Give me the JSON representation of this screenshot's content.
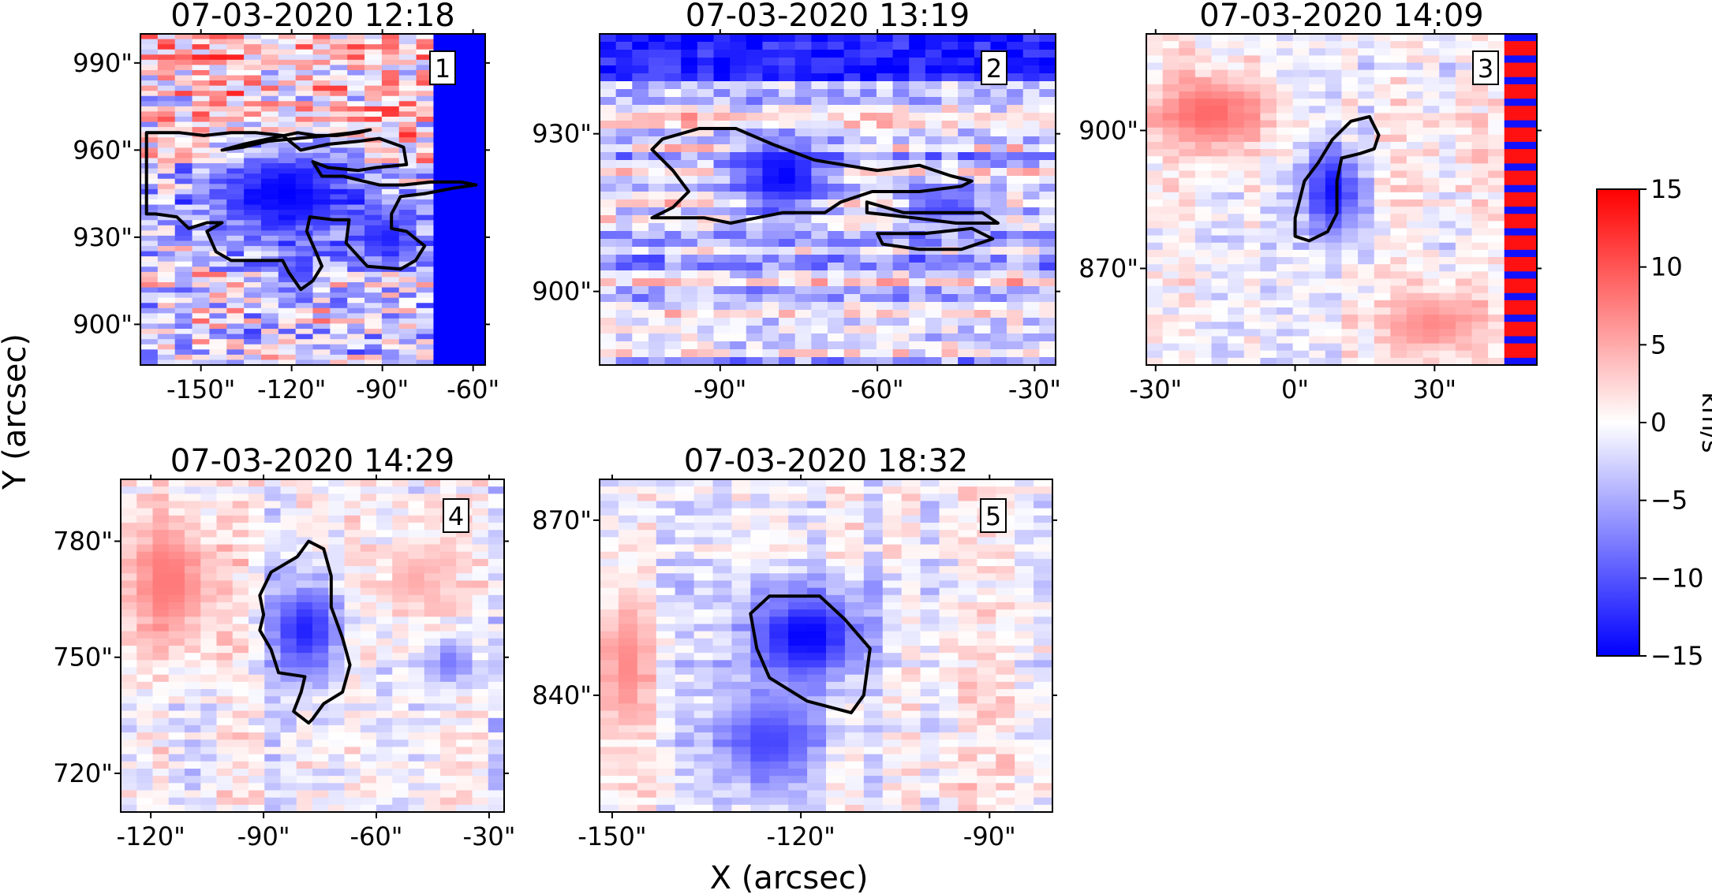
{
  "figure": {
    "xlabel": "X (arcsec)",
    "ylabel": "Y (arcsec)"
  },
  "colorbar": {
    "label": "km/s",
    "range": [
      -15,
      15
    ],
    "ticks": [
      15,
      10,
      5,
      0,
      -5,
      -10,
      -15
    ],
    "tick_labels": [
      "15",
      "10",
      "5",
      "0",
      "−5",
      "−10",
      "−15"
    ],
    "colors": {
      "low": "#0000ff",
      "mid": "#ffffff",
      "high": "#ff0000"
    }
  },
  "chart_data": [
    {
      "type": "heatmap",
      "panel": "1",
      "title": "07-03-2020 12:18",
      "xlim": [
        -170,
        -56
      ],
      "ylim": [
        886,
        1000
      ],
      "xticks": [
        -150,
        -120,
        -90,
        -60
      ],
      "xtick_labels": [
        "-150\"",
        "-120\"",
        "-90\"",
        "-60\""
      ],
      "yticks": [
        900,
        930,
        960,
        990
      ],
      "ytick_labels": [
        "900\"",
        "930\"",
        "960\"",
        "990\""
      ],
      "pattern": "noisy",
      "blobs": [
        {
          "x": -122,
          "y": 945,
          "rx": 33,
          "ry": 20,
          "v": -15
        },
        {
          "x": -88,
          "y": 930,
          "rx": 14,
          "ry": 12,
          "v": -13
        },
        {
          "x": -118,
          "y": 918,
          "rx": 8,
          "ry": 8,
          "v": -12
        }
      ],
      "stripes": [
        {
          "x": [
            -66,
            -62
          ],
          "v": -15
        }
      ],
      "contours": [
        [
          [
            -168,
            966
          ],
          [
            -157,
            966
          ],
          [
            -149,
            965
          ],
          [
            -140,
            966
          ],
          [
            -132,
            966
          ],
          [
            -123,
            965
          ],
          [
            -117,
            960
          ],
          [
            -108,
            962
          ],
          [
            -98,
            963
          ],
          [
            -91,
            964
          ],
          [
            -83,
            961
          ],
          [
            -82,
            955
          ],
          [
            -92,
            954
          ],
          [
            -98,
            953
          ],
          [
            -108,
            954
          ],
          [
            -113,
            956
          ],
          [
            -110,
            951
          ],
          [
            -103,
            951
          ],
          [
            -95,
            949
          ],
          [
            -91,
            948
          ],
          [
            -83,
            948
          ],
          [
            -74,
            949
          ],
          [
            -64,
            949
          ],
          [
            -59,
            948
          ],
          [
            -66,
            947
          ],
          [
            -76,
            945
          ],
          [
            -84,
            944
          ],
          [
            -87,
            938
          ],
          [
            -87,
            933
          ],
          [
            -82,
            932
          ],
          [
            -76,
            927
          ],
          [
            -79,
            922
          ],
          [
            -84,
            919
          ],
          [
            -95,
            920
          ],
          [
            -102,
            928
          ],
          [
            -101,
            936
          ],
          [
            -106,
            936
          ],
          [
            -114,
            937
          ],
          [
            -115,
            932
          ],
          [
            -112,
            925
          ],
          [
            -110,
            920
          ],
          [
            -113,
            915
          ],
          [
            -117,
            912
          ],
          [
            -121,
            918
          ],
          [
            -123,
            922
          ],
          [
            -128,
            922
          ],
          [
            -133,
            922
          ],
          [
            -140,
            922
          ],
          [
            -145,
            925
          ],
          [
            -148,
            932
          ],
          [
            -143,
            935
          ],
          [
            -148,
            935
          ],
          [
            -154,
            933
          ],
          [
            -158,
            937
          ],
          [
            -165,
            938
          ],
          [
            -168,
            938
          ]
        ],
        [
          [
            -143,
            960
          ],
          [
            -136,
            962
          ],
          [
            -127,
            964
          ],
          [
            -118,
            966
          ],
          [
            -112,
            965
          ],
          [
            -105,
            965
          ],
          [
            -98,
            966
          ],
          [
            -94,
            967
          ],
          [
            -100,
            966
          ],
          [
            -108,
            965
          ],
          [
            -118,
            964
          ],
          [
            -128,
            963
          ],
          [
            -136,
            961
          ]
        ]
      ]
    },
    {
      "type": "heatmap",
      "panel": "2",
      "title": "07-03-2020 13:19",
      "xlim": [
        -113,
        -26
      ],
      "ylim": [
        886,
        949
      ],
      "xticks": [
        -90,
        -60,
        -30
      ],
      "xtick_labels": [
        "-90\"",
        "-60\"",
        "-30\""
      ],
      "yticks": [
        900,
        930
      ],
      "ytick_labels": [
        "900\"",
        "930\""
      ],
      "pattern": "banded",
      "blobs": [
        {
          "x": -78,
          "y": 922,
          "rx": 10,
          "ry": 8,
          "v": -15
        },
        {
          "x": -47,
          "y": 916,
          "rx": 10,
          "ry": 4,
          "v": -11
        }
      ],
      "topband": {
        "y": [
          940,
          949
        ],
        "v": -13
      },
      "contours": [
        [
          [
            -101,
            929
          ],
          [
            -94,
            931
          ],
          [
            -87,
            931
          ],
          [
            -80,
            928
          ],
          [
            -72,
            925
          ],
          [
            -60,
            923
          ],
          [
            -52,
            924
          ],
          [
            -46,
            922
          ],
          [
            -42,
            921
          ],
          [
            -44,
            920
          ],
          [
            -52,
            919
          ],
          [
            -61,
            919
          ],
          [
            -67,
            917
          ],
          [
            -70,
            915
          ],
          [
            -78,
            915
          ],
          [
            -83,
            914
          ],
          [
            -88,
            913
          ],
          [
            -93,
            914
          ],
          [
            -99,
            914
          ],
          [
            -103,
            914
          ],
          [
            -99,
            916
          ],
          [
            -96,
            919
          ],
          [
            -99,
            923
          ],
          [
            -103,
            927
          ]
        ],
        [
          [
            -62,
            917
          ],
          [
            -55,
            915
          ],
          [
            -48,
            915
          ],
          [
            -40,
            915
          ],
          [
            -37,
            913
          ],
          [
            -45,
            913
          ],
          [
            -53,
            914
          ],
          [
            -62,
            915
          ]
        ],
        [
          [
            -51,
            911
          ],
          [
            -42,
            912
          ],
          [
            -38,
            910
          ],
          [
            -44,
            908
          ],
          [
            -52,
            908
          ],
          [
            -59,
            909
          ],
          [
            -60,
            911
          ]
        ]
      ]
    },
    {
      "type": "heatmap",
      "panel": "3",
      "title": "07-03-2020 14:09",
      "xlim": [
        -32,
        52
      ],
      "ylim": [
        849,
        921
      ],
      "xticks": [
        -30,
        0,
        30
      ],
      "xtick_labels": [
        "-30\"",
        "0\"",
        "30\""
      ],
      "yticks": [
        870,
        900
      ],
      "ytick_labels": [
        "870\"",
        "900\""
      ],
      "pattern": "smooth",
      "blobs": [
        {
          "x": 8,
          "y": 887,
          "rx": 7,
          "ry": 11,
          "v": -14
        },
        {
          "x": -18,
          "y": 904,
          "rx": 14,
          "ry": 10,
          "v": 9
        },
        {
          "x": 30,
          "y": 858,
          "rx": 14,
          "ry": 8,
          "v": 7
        }
      ],
      "stripes": [
        {
          "x": [
            48,
            52
          ],
          "v": 14,
          "alternate": true
        }
      ],
      "contours": [
        [
          [
            0,
            881
          ],
          [
            2,
            889
          ],
          [
            5,
            893
          ],
          [
            8,
            898
          ],
          [
            12,
            902
          ],
          [
            16,
            903
          ],
          [
            18,
            899
          ],
          [
            17,
            896
          ],
          [
            14,
            895
          ],
          [
            10,
            894
          ],
          [
            9,
            889
          ],
          [
            9,
            882
          ],
          [
            7,
            878
          ],
          [
            3,
            876
          ],
          [
            0,
            877
          ]
        ]
      ]
    },
    {
      "type": "heatmap",
      "panel": "4",
      "title": "07-03-2020 14:29",
      "xlim": [
        -128,
        -26
      ],
      "ylim": [
        710,
        796
      ],
      "xticks": [
        -120,
        -90,
        -60,
        -30
      ],
      "xtick_labels": [
        "-120\"",
        "-90\"",
        "-60\"",
        "-30\""
      ],
      "yticks": [
        720,
        750,
        780
      ],
      "ytick_labels": [
        "720\"",
        "750\"",
        "780\""
      ],
      "pattern": "smooth",
      "blobs": [
        {
          "x": -79,
          "y": 757,
          "rx": 11,
          "ry": 14,
          "v": -13
        },
        {
          "x": -115,
          "y": 770,
          "rx": 14,
          "ry": 20,
          "v": 8
        },
        {
          "x": -50,
          "y": 770,
          "rx": 10,
          "ry": 10,
          "v": 5
        },
        {
          "x": -40,
          "y": 749,
          "rx": 8,
          "ry": 8,
          "v": -8
        }
      ],
      "contours": [
        [
          [
            -88,
            772
          ],
          [
            -81,
            776
          ],
          [
            -78,
            780
          ],
          [
            -74,
            778
          ],
          [
            -72,
            771
          ],
          [
            -72,
            763
          ],
          [
            -69,
            755
          ],
          [
            -67,
            748
          ],
          [
            -69,
            741
          ],
          [
            -74,
            738
          ],
          [
            -77,
            734
          ],
          [
            -78,
            733
          ],
          [
            -82,
            736
          ],
          [
            -80,
            741
          ],
          [
            -79,
            745
          ],
          [
            -86,
            746
          ],
          [
            -88,
            752
          ],
          [
            -91,
            757
          ],
          [
            -90,
            761
          ],
          [
            -91,
            766
          ]
        ]
      ]
    },
    {
      "type": "heatmap",
      "panel": "5",
      "title": "07-03-2020 18:32",
      "xlim": [
        -152,
        -80
      ],
      "ylim": [
        820,
        877
      ],
      "xticks": [
        -150,
        -120,
        -90
      ],
      "xtick_labels": [
        "-150\"",
        "-120\"",
        "-90\""
      ],
      "yticks": [
        840,
        870
      ],
      "ytick_labels": [
        "840\"",
        "870\""
      ],
      "pattern": "smooth",
      "blobs": [
        {
          "x": -119,
          "y": 850,
          "rx": 11,
          "ry": 9,
          "v": -15
        },
        {
          "x": -125,
          "y": 832,
          "rx": 10,
          "ry": 10,
          "v": -11
        },
        {
          "x": -148,
          "y": 845,
          "rx": 5,
          "ry": 14,
          "v": 7
        }
      ],
      "contours": [
        [
          [
            -128,
            854
          ],
          [
            -125,
            857
          ],
          [
            -117,
            857
          ],
          [
            -113,
            853
          ],
          [
            -109,
            848
          ],
          [
            -110,
            840
          ],
          [
            -112,
            837
          ],
          [
            -119,
            839
          ],
          [
            -125,
            843
          ],
          [
            -127,
            848
          ]
        ]
      ]
    }
  ]
}
